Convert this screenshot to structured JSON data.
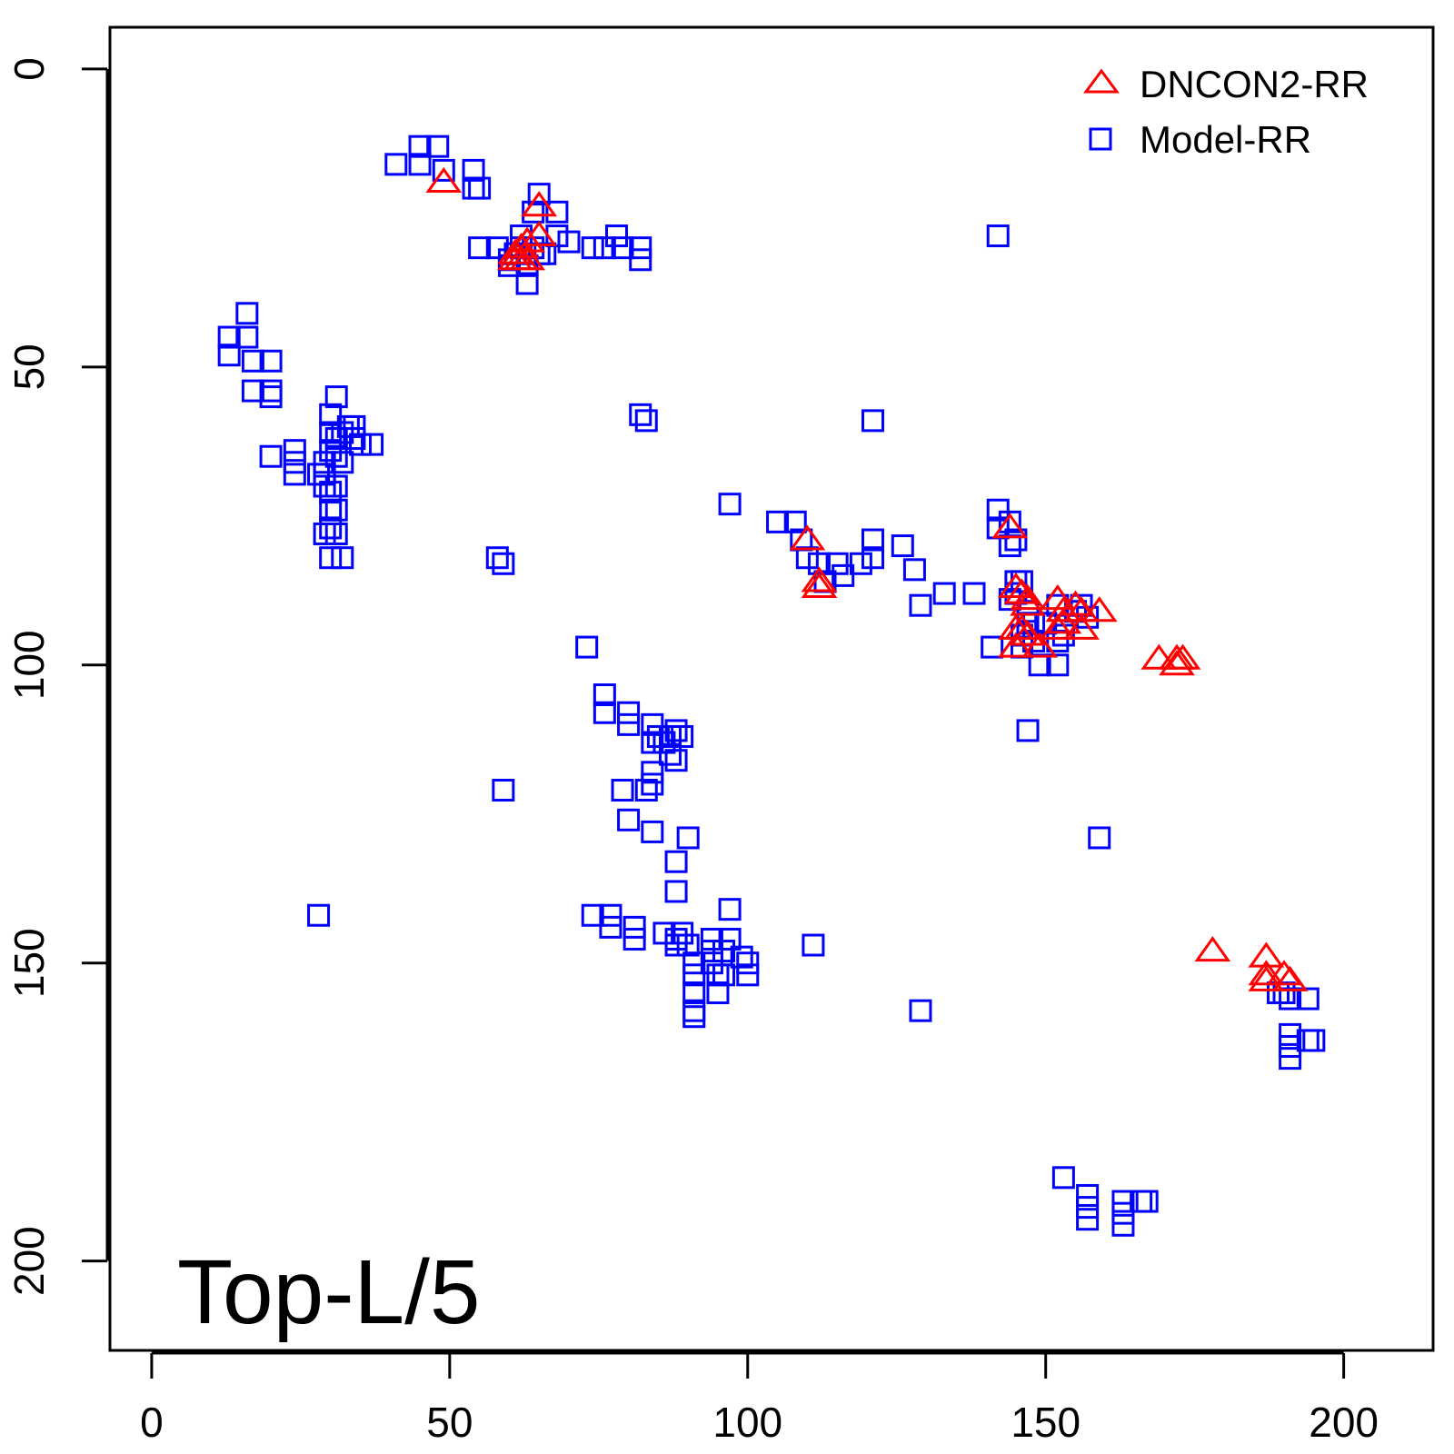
{
  "chart_data": {
    "type": "scatter",
    "annotation": "Top-L/5",
    "xlim": [
      -7,
      215
    ],
    "ylim": [
      -7,
      215
    ],
    "y_reversed": true,
    "x_ticks": [
      "0",
      "50",
      "100",
      "150",
      "200"
    ],
    "y_ticks": [
      "0",
      "50",
      "100",
      "150",
      "200"
    ],
    "x_tick_values": [
      0,
      50,
      100,
      150,
      200
    ],
    "y_tick_values": [
      0,
      50,
      100,
      150,
      200
    ],
    "legend_position": "top-right",
    "series": [
      {
        "name": "DNCON2-RR",
        "marker": "triangle",
        "color": "#ff0000",
        "points": [
          [
            49,
            19
          ],
          [
            65,
            23
          ],
          [
            65,
            28
          ],
          [
            63,
            29
          ],
          [
            62,
            30
          ],
          [
            61,
            31
          ],
          [
            61,
            32
          ],
          [
            62,
            32
          ],
          [
            63,
            32
          ],
          [
            110,
            79
          ],
          [
            112,
            86
          ],
          [
            112,
            87
          ],
          [
            144,
            77
          ],
          [
            145,
            87
          ],
          [
            146,
            88
          ],
          [
            147,
            89
          ],
          [
            147,
            90
          ],
          [
            152,
            89
          ],
          [
            153,
            91
          ],
          [
            155,
            90
          ],
          [
            156,
            91
          ],
          [
            159,
            91
          ],
          [
            145,
            94
          ],
          [
            146,
            94
          ],
          [
            147,
            95
          ],
          [
            145,
            97
          ],
          [
            149,
            97
          ],
          [
            152,
            94
          ],
          [
            153,
            93
          ],
          [
            156,
            94
          ],
          [
            169,
            99
          ],
          [
            172,
            99
          ],
          [
            172,
            100
          ],
          [
            173,
            99
          ],
          [
            178,
            148
          ],
          [
            187,
            149
          ],
          [
            187,
            152
          ],
          [
            187,
            153
          ],
          [
            190,
            152
          ],
          [
            191,
            153
          ]
        ]
      },
      {
        "name": "Model-RR",
        "marker": "square",
        "color": "#0000ff",
        "points": [
          [
            41,
            16
          ],
          [
            45,
            13
          ],
          [
            45,
            16
          ],
          [
            48,
            13
          ],
          [
            49,
            17
          ],
          [
            54,
            17
          ],
          [
            54,
            20
          ],
          [
            55,
            20
          ],
          [
            65,
            21
          ],
          [
            64,
            24
          ],
          [
            68,
            24
          ],
          [
            68,
            28
          ],
          [
            70,
            29
          ],
          [
            74,
            30
          ],
          [
            76,
            30
          ],
          [
            78,
            28
          ],
          [
            79,
            30
          ],
          [
            82,
            30
          ],
          [
            82,
            32
          ],
          [
            55,
            30
          ],
          [
            58,
            30
          ],
          [
            60,
            32
          ],
          [
            60,
            33
          ],
          [
            61,
            31
          ],
          [
            62,
            30
          ],
          [
            63,
            33
          ],
          [
            63,
            36
          ],
          [
            64,
            30
          ],
          [
            65,
            31
          ],
          [
            66,
            31
          ],
          [
            62,
            28
          ],
          [
            13,
            45
          ],
          [
            13,
            48
          ],
          [
            16,
            41
          ],
          [
            16,
            45
          ],
          [
            17,
            49
          ],
          [
            17,
            54
          ],
          [
            20,
            49
          ],
          [
            20,
            54
          ],
          [
            20,
            55
          ],
          [
            31,
            55
          ],
          [
            30,
            58
          ],
          [
            30,
            61
          ],
          [
            31,
            62
          ],
          [
            32,
            61
          ],
          [
            33,
            60
          ],
          [
            34,
            60
          ],
          [
            34,
            62
          ],
          [
            35,
            63
          ],
          [
            37,
            63
          ],
          [
            30,
            64
          ],
          [
            31,
            65
          ],
          [
            32,
            66
          ],
          [
            29,
            66
          ],
          [
            29,
            68
          ],
          [
            20,
            65
          ],
          [
            24,
            64
          ],
          [
            24,
            66
          ],
          [
            24,
            68
          ],
          [
            28,
            68
          ],
          [
            29,
            70
          ],
          [
            30,
            71
          ],
          [
            31,
            70
          ],
          [
            30,
            74
          ],
          [
            30,
            77
          ],
          [
            31,
            74
          ],
          [
            29,
            78
          ],
          [
            31,
            78
          ],
          [
            30,
            82
          ],
          [
            32,
            82
          ],
          [
            82,
            58
          ],
          [
            83,
            59
          ],
          [
            58,
            82
          ],
          [
            59,
            83
          ],
          [
            59,
            121
          ],
          [
            28,
            142
          ],
          [
            73,
            97
          ],
          [
            76,
            105
          ],
          [
            76,
            108
          ],
          [
            80,
            108
          ],
          [
            80,
            110
          ],
          [
            84,
            110
          ],
          [
            84,
            113
          ],
          [
            85,
            112
          ],
          [
            86,
            113
          ],
          [
            87,
            112
          ],
          [
            88,
            111
          ],
          [
            89,
            112
          ],
          [
            87,
            115
          ],
          [
            88,
            116
          ],
          [
            84,
            118
          ],
          [
            84,
            120
          ],
          [
            83,
            121
          ],
          [
            79,
            121
          ],
          [
            80,
            126
          ],
          [
            84,
            128
          ],
          [
            90,
            129
          ],
          [
            88,
            133
          ],
          [
            88,
            138
          ],
          [
            97,
            141
          ],
          [
            74,
            142
          ],
          [
            77,
            142
          ],
          [
            77,
            144
          ],
          [
            81,
            144
          ],
          [
            81,
            146
          ],
          [
            86,
            145
          ],
          [
            88,
            146
          ],
          [
            88,
            147
          ],
          [
            89,
            145
          ],
          [
            90,
            147
          ],
          [
            94,
            146
          ],
          [
            97,
            146
          ],
          [
            91,
            150
          ],
          [
            91,
            152
          ],
          [
            94,
            148
          ],
          [
            94,
            150
          ],
          [
            95,
            152
          ],
          [
            95,
            155
          ],
          [
            96,
            148
          ],
          [
            96,
            152
          ],
          [
            99,
            149
          ],
          [
            100,
            150
          ],
          [
            100,
            152
          ],
          [
            91,
            155
          ],
          [
            91,
            158
          ],
          [
            91,
            159
          ],
          [
            111,
            147
          ],
          [
            129,
            158
          ],
          [
            121,
            59
          ],
          [
            97,
            73
          ],
          [
            105,
            76
          ],
          [
            108,
            76
          ],
          [
            109,
            79
          ],
          [
            110,
            82
          ],
          [
            112,
            83
          ],
          [
            113,
            86
          ],
          [
            115,
            83
          ],
          [
            116,
            85
          ],
          [
            119,
            83
          ],
          [
            121,
            82
          ],
          [
            121,
            79
          ],
          [
            126,
            80
          ],
          [
            128,
            84
          ],
          [
            129,
            90
          ],
          [
            133,
            88
          ],
          [
            138,
            88
          ],
          [
            142,
            28
          ],
          [
            142,
            74
          ],
          [
            142,
            77
          ],
          [
            144,
            76
          ],
          [
            144,
            80
          ],
          [
            145,
            79
          ],
          [
            145,
            86
          ],
          [
            144,
            89
          ],
          [
            145,
            88
          ],
          [
            146,
            86
          ],
          [
            147,
            91
          ],
          [
            147,
            93
          ],
          [
            148,
            93
          ],
          [
            150,
            93
          ],
          [
            152,
            90
          ],
          [
            155,
            91
          ],
          [
            156,
            90
          ],
          [
            157,
            92
          ],
          [
            141,
            97
          ],
          [
            146,
            95
          ],
          [
            146,
            97
          ],
          [
            148,
            96
          ],
          [
            149,
            100
          ],
          [
            152,
            100
          ],
          [
            152,
            96
          ],
          [
            153,
            95
          ],
          [
            147,
            111
          ],
          [
            159,
            129
          ],
          [
            189,
            155
          ],
          [
            190,
            155
          ],
          [
            191,
            156
          ],
          [
            194,
            156
          ],
          [
            191,
            162
          ],
          [
            191,
            164
          ],
          [
            191,
            166
          ],
          [
            194,
            163
          ],
          [
            195,
            163
          ],
          [
            153,
            186
          ],
          [
            157,
            189
          ],
          [
            157,
            191
          ],
          [
            157,
            193
          ],
          [
            163,
            190
          ],
          [
            163,
            192
          ],
          [
            163,
            194
          ],
          [
            166,
            190
          ],
          [
            167,
            190
          ]
        ]
      }
    ]
  }
}
